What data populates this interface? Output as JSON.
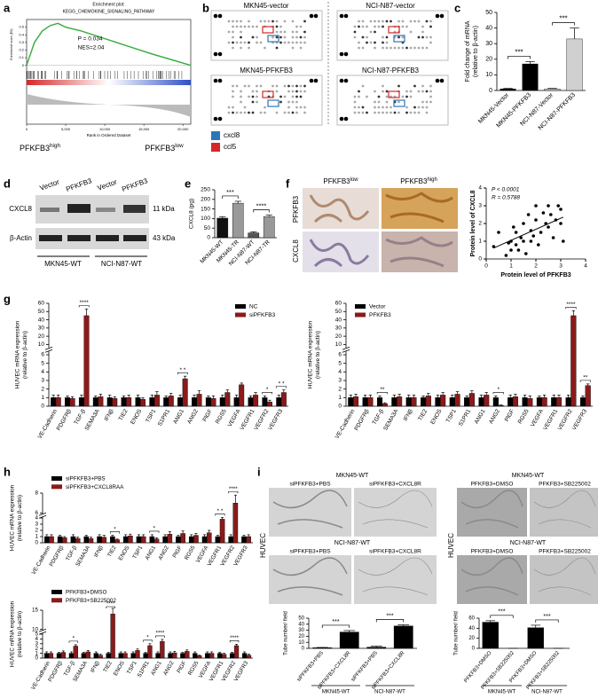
{
  "panel_labels": [
    "a",
    "b",
    "c",
    "d",
    "e",
    "f",
    "g",
    "h",
    "i"
  ],
  "arrays": {
    "titles": [
      "MKN45-vector",
      "NCI-N87-vector",
      "MKN45-PFKFB3",
      "NCI-N87-PFKFB3"
    ],
    "legend": [
      {
        "name": "cxcl8",
        "color": "#2e75b6"
      },
      {
        "name": "ccl5",
        "color": "#d62728"
      }
    ]
  },
  "western_blot": {
    "lanes": [
      "Vector",
      "PFKFB3",
      "Vector",
      "PFKFB3"
    ],
    "rows": [
      {
        "name": "CXCL8",
        "size": "11 kDa"
      },
      {
        "name": "β-Actin",
        "size": "43 kDa"
      }
    ],
    "groups": [
      "MKN45-WT",
      "NCI-N87-WT"
    ]
  },
  "ihc": {
    "columns": [
      {
        "text": "PFKFB3",
        "sup": "low"
      },
      {
        "text": "PFKFB3",
        "sup": "high"
      }
    ],
    "rows": [
      "PFKFB3",
      "CXCL8"
    ]
  },
  "tube_images": {
    "side_label": "HUVEC",
    "left": [
      {
        "title": "MKN45-WT",
        "images": [
          "siPFKFB3+PBS",
          "siPFKFB3+CXCL8R"
        ]
      },
      {
        "title": "NCI-N87-WT",
        "images": [
          "siPFKFB3+PBS",
          "siPFKFB3+CXCL8R"
        ]
      }
    ],
    "right": [
      {
        "title": "MKN45-WT",
        "images": [
          "PFKFB3+DMSO",
          "PFKFB3+SB225002"
        ]
      },
      {
        "title": "NCI-N87-WT",
        "images": [
          "PFKFB3+DMSO",
          "PFKFB3+SB225002"
        ]
      }
    ]
  },
  "chart_data": [
    {
      "type": "line",
      "title": [
        "Enrichment plot:",
        "KEGG_CHEMOKINE_SIGNALING_PATHWAY"
      ],
      "ylabel": "Enrichment score (ES)",
      "xlabel": "Rank in Ordered Dataset",
      "x": [
        0,
        1000,
        2000,
        3000,
        4000,
        5000,
        7000,
        10000,
        13000,
        16000,
        19000,
        21000
      ],
      "y": [
        0,
        0.3,
        0.45,
        0.52,
        0.55,
        0.5,
        0.45,
        0.35,
        0.25,
        0.15,
        0.06,
        0
      ],
      "color": "#3cb043",
      "xlim": [
        0,
        21000
      ],
      "ylim": [
        -0.05,
        0.6
      ],
      "yticks": [
        0,
        0.1,
        0.2,
        0.3,
        0.4,
        0.5
      ],
      "xticks": [
        0,
        {
          "value": 5000,
          "label": "5,000"
        },
        {
          "value": 10000,
          "label": "10,000"
        },
        {
          "value": 15000,
          "label": "15,000"
        },
        {
          "value": 20000,
          "label": "20,000"
        }
      ],
      "annotations": [
        "P = 0.034",
        "NES=2.04"
      ],
      "group_labels": [
        {
          "text": "PFKFB3",
          "sup": "high"
        },
        {
          "text": "PFKFB3",
          "sup": "low"
        }
      ]
    },
    {
      "type": "bar",
      "ylabel": [
        "Fold change of mRNA",
        "(relative to β-actin)"
      ],
      "categories": [
        "MKN45-Vector",
        "MKN45-PFKFB3",
        "NCI-N87-Vector",
        "NCI-N87-PFKFB3"
      ],
      "values": [
        1,
        17,
        1,
        33
      ],
      "errors": [
        0.3,
        1.5,
        0.3,
        7
      ],
      "colors": [
        "#000000",
        "#000000",
        "#d0d0d0",
        "#d0d0d0"
      ],
      "ylim": [
        0,
        50
      ],
      "yticks": [
        0,
        10,
        20,
        30,
        40,
        50
      ],
      "annotations": [
        {
          "label": "***"
        },
        {
          "label": "***"
        }
      ]
    },
    {
      "type": "bar",
      "ylabel": [
        "CXCL8 (pg)"
      ],
      "categories": [
        "MKN45-WT",
        "MKN45-TR",
        "NCI-N87-WT",
        "NCI-N87-TR"
      ],
      "values": [
        102,
        180,
        25,
        110
      ],
      "errors": [
        8,
        10,
        6,
        8
      ],
      "colors": [
        "#111111",
        "#999999",
        "#555555",
        "#999999"
      ],
      "ylim": [
        0,
        250
      ],
      "yticks": [
        0,
        50,
        100,
        150,
        200,
        250
      ],
      "annotations": [
        {
          "label": "***"
        },
        {
          "label": "****"
        }
      ]
    },
    {
      "type": "scatter",
      "xlabel": "Protein level of PFKFB3",
      "ylabel": "Protein level of CXCL8",
      "x": [
        0.3,
        0.5,
        0.8,
        0.9,
        1.0,
        1.0,
        1.1,
        1.2,
        1.2,
        1.3,
        1.4,
        1.5,
        1.5,
        1.6,
        1.7,
        1.8,
        1.8,
        1.9,
        2.0,
        2.0,
        2.1,
        2.2,
        2.3,
        2.4,
        2.5,
        2.5,
        2.6,
        2.7,
        2.8,
        2.9,
        3.0,
        3.0,
        3.1
      ],
      "y": [
        0.7,
        1.5,
        0.2,
        0.9,
        1.0,
        0.5,
        1.8,
        1.5,
        0.8,
        0.5,
        1.2,
        2.0,
        1.0,
        0.3,
        2.5,
        1.0,
        1.6,
        1.3,
        2.2,
        3.0,
        0.8,
        1.5,
        2.6,
        2.0,
        3.0,
        1.8,
        2.5,
        1.2,
        2.2,
        3.0,
        2.0,
        2.8,
        1.0
      ],
      "color": "#000000",
      "xlim": [
        0,
        4
      ],
      "ylim": [
        0,
        4
      ],
      "xticks": [
        0,
        1,
        2,
        3,
        4
      ],
      "yticks": [
        0,
        1,
        2,
        3,
        4
      ],
      "annotations": [
        "P < 0.0001",
        "R = 0.5788"
      ]
    },
    {
      "type": "bar",
      "ylabel": [
        "HUVEC mRNA expression",
        "(relative to β-actin)"
      ],
      "broken_axis": true,
      "legend": "upper right",
      "categories": [
        "VE-Cadherin",
        "PDGFRβ",
        "TGF-β",
        "SEMA3A",
        "IFNβ",
        "TIE2",
        "ENOS",
        "TSP1",
        "S1PR1",
        "ANG1",
        "ANG2",
        "PlGF",
        "RGS5",
        "VEGFA",
        "VEGFR1",
        "VEGFR2",
        "VEGFR3"
      ],
      "series": [
        {
          "name": "NC",
          "color": "#000000",
          "values": [
            1,
            1,
            1,
            1,
            1,
            1,
            1,
            1,
            1,
            1,
            1,
            1,
            1,
            1,
            1,
            1,
            1
          ],
          "errors": [
            0.3,
            0.2,
            0.3,
            0.2,
            0.3,
            0.2,
            0.3,
            0.3,
            0.2,
            0.3,
            0.3,
            0.2,
            0.3,
            0.3,
            0.2,
            0.2,
            0.3
          ]
        },
        {
          "name": "siPFKFB3",
          "color": "#8b1a1a",
          "values": [
            1.0,
            0.9,
            45,
            1.1,
            0.9,
            1.0,
            0.8,
            1.3,
            1.2,
            3.2,
            1.4,
            0.9,
            1.6,
            2.5,
            1.3,
            0.5,
            1.6
          ],
          "errors": [
            0.3,
            0.2,
            8,
            0.3,
            0.2,
            0.3,
            0.2,
            0.4,
            0.3,
            0.3,
            0.4,
            0.3,
            0.3,
            0.2,
            0.3,
            0.2,
            0.3
          ]
        }
      ],
      "ylim": [
        0,
        60
      ],
      "yticks": [
        0,
        1,
        2,
        3,
        4,
        5,
        6,
        10,
        20,
        30,
        40,
        50,
        60
      ],
      "annotations": [
        {
          "label": "****",
          "category": "TGF-β"
        },
        {
          "label": "* *",
          "category": "ANG1"
        },
        {
          "label": "*",
          "category": "VEGFR2"
        },
        {
          "label": "* *",
          "category": "VEGFR3"
        }
      ]
    },
    {
      "type": "bar",
      "ylabel": [
        "HUVEC mRNA expression",
        "(relative to β-actin)"
      ],
      "broken_axis": true,
      "legend": "upper left",
      "categories": [
        "VE-Cadherin",
        "PDGFRβ",
        "TGF-β",
        "SEMA3A",
        "IFNβ",
        "TIE2",
        "ENOS",
        "TSP1",
        "S1PR1",
        "ANG1",
        "ANG2",
        "PlGF",
        "RGS5",
        "VEGFA",
        "VEGFR1",
        "VEGFR2",
        "VEGFR3"
      ],
      "series": [
        {
          "name": "Vector",
          "color": "#000000",
          "values": [
            1,
            1,
            1,
            1,
            1,
            1,
            1,
            1,
            1,
            1,
            1,
            1,
            1,
            1,
            1,
            1,
            1
          ],
          "errors": [
            0.3,
            0.3,
            0.2,
            0.3,
            0.3,
            0.2,
            0.3,
            0.3,
            0.2,
            0.3,
            0.2,
            0.3,
            0.3,
            0.2,
            0.3,
            0.3,
            0.2
          ]
        },
        {
          "name": "PFKFB3",
          "color": "#8b1a1a",
          "values": [
            1.1,
            1.0,
            0.3,
            1.1,
            1.0,
            1.2,
            1.3,
            1.4,
            1.5,
            1.3,
            0.1,
            1.1,
            0.9,
            1.0,
            1.0,
            45,
            2.4
          ],
          "errors": [
            0.3,
            0.3,
            0.1,
            0.3,
            0.3,
            0.3,
            0.3,
            0.3,
            0.3,
            0.3,
            0.05,
            0.3,
            0.3,
            0.3,
            0.3,
            6,
            0.2
          ]
        }
      ],
      "ylim": [
        0,
        60
      ],
      "yticks": [
        0,
        1,
        2,
        3,
        4,
        5,
        6,
        10,
        20,
        30,
        40,
        50,
        60
      ],
      "annotations": [
        {
          "label": "**",
          "category": "TGF-β"
        },
        {
          "label": "*",
          "category": "ANG2"
        },
        {
          "label": "****",
          "category": "VEGFR2"
        },
        {
          "label": "**",
          "category": "VEGFR3"
        }
      ]
    },
    {
      "type": "bar",
      "ylabel": [
        "HUVEC mRNA expression",
        "(relative to β-actin)"
      ],
      "broken_axis": true,
      "legend": "upper left",
      "categories": [
        "VE-Cadherin",
        "PDGFRβ",
        "TGF-β",
        "SEMA3A",
        "IFNβ",
        "TIE2",
        "ENOS",
        "TSP1",
        "ANG1",
        "ANG2",
        "PlGF",
        "RGS5",
        "VEGFA",
        "VEGFR1",
        "VEGFR2",
        "VEGFR3"
      ],
      "series": [
        {
          "name": "siPFKFB3+PBS",
          "color": "#000000",
          "values": [
            1,
            1,
            1,
            1,
            1,
            1,
            1,
            1,
            1,
            1,
            1,
            1,
            1,
            1,
            1,
            1
          ],
          "errors": [
            0.3,
            0.2,
            0.3,
            0.2,
            0.3,
            0.2,
            0.3,
            0.3,
            0.3,
            0.3,
            0.2,
            0.3,
            0.3,
            0.2,
            0.3,
            0.2
          ]
        },
        {
          "name": "siPFKFB3+CXCL8RAA",
          "color": "#8b1a1a",
          "values": [
            1.0,
            0.8,
            0.7,
            0.7,
            0.9,
            0.5,
            1.1,
            1.0,
            0.6,
            1.4,
            1.5,
            1.2,
            1.6,
            3.8,
            7.0,
            1.0
          ],
          "errors": [
            0.3,
            0.2,
            0.2,
            0.2,
            0.3,
            0.1,
            0.3,
            0.3,
            0.2,
            0.4,
            0.4,
            0.3,
            0.4,
            0.4,
            0.8,
            0.3
          ]
        }
      ],
      "ylim": [
        0,
        8
      ],
      "yticks": [
        0,
        1,
        2,
        3,
        4,
        6,
        8
      ],
      "annotations": [
        {
          "label": "*",
          "category": "TIE2"
        },
        {
          "label": "*",
          "category": "ANG1"
        },
        {
          "label": "* *",
          "category": "VEGFR1"
        },
        {
          "label": "****",
          "category": "VEGFR2"
        }
      ]
    },
    {
      "type": "bar",
      "ylabel": [
        "HUVEC mRNA expression",
        "(relative to β-actin)"
      ],
      "broken_axis": true,
      "legend": "upper left",
      "categories": [
        "VE-Cadherin",
        "PDGFRβ",
        "TGF-β",
        "SEMA3A",
        "IFNβ",
        "TIE2",
        "ENOS",
        "TSP1",
        "S1PR1",
        "ANG1",
        "ANG2",
        "PlGF",
        "RGS5",
        "VEGFA",
        "VEGFR1",
        "VEGFR2",
        "VEGFR3"
      ],
      "series": [
        {
          "name": "PFKFB3+DMSO",
          "color": "#000000",
          "values": [
            1,
            1,
            1,
            1,
            1,
            1,
            1,
            1,
            1,
            1,
            1,
            1,
            1,
            1,
            1,
            1,
            1
          ],
          "errors": [
            0.3,
            0.2,
            0.3,
            0.2,
            0.3,
            0.2,
            0.3,
            0.3,
            0.2,
            0.3,
            0.3,
            0.2,
            0.3,
            0.3,
            0.2,
            0.2,
            0.3
          ]
        },
        {
          "name": "PFKFB3+SB225002",
          "color": "#8b1a1a",
          "values": [
            1.0,
            1.2,
            2.5,
            1.3,
            0.6,
            14,
            1.0,
            1.6,
            2.6,
            3.5,
            1.1,
            1.4,
            0.5,
            1.0,
            0.8,
            2.6,
            0.6
          ],
          "errors": [
            0.3,
            0.3,
            0.3,
            0.3,
            0.2,
            1.5,
            0.3,
            0.3,
            0.4,
            0.4,
            0.3,
            0.3,
            0.1,
            0.3,
            0.2,
            0.3,
            0.2
          ]
        }
      ],
      "ylim": [
        0,
        15
      ],
      "yticks": [
        0,
        1,
        2,
        3,
        4,
        5,
        10,
        15
      ],
      "annotations": [
        {
          "label": "*",
          "category": "TGF-β"
        },
        {
          "label": "****",
          "category": "TIE2"
        },
        {
          "label": "*",
          "category": "S1PR1"
        },
        {
          "label": "****",
          "category": "ANG1"
        },
        {
          "label": "****",
          "category": "VEGFR2"
        }
      ]
    },
    {
      "type": "bar",
      "ylabel": [
        "Tube number/ field"
      ],
      "categories": [
        "siPFKFB3+PBS",
        "siPFKFB3+CXCL8R",
        "siPFKFB3+PBS",
        "siPFKFB3+CXCL8R"
      ],
      "values": [
        1,
        27,
        2,
        37
      ],
      "errors": [
        0.5,
        2.5,
        1.5,
        2
      ],
      "colors": [
        "#000000",
        "#000000",
        "#000000",
        "#000000"
      ],
      "ylim": [
        0,
        50
      ],
      "yticks": [
        0,
        10,
        20,
        30,
        40,
        50
      ],
      "annotations": [
        {
          "label": "***"
        },
        {
          "label": "***"
        }
      ],
      "groups": [
        "MKN45-WT",
        "NCI-N87-WT"
      ]
    },
    {
      "type": "bar",
      "ylabel": [
        "Tube number/ field"
      ],
      "categories": [
        "PFKFB3+DMSO",
        "PFKFB3+SB225002",
        "PFKFB3+DMSO",
        "PFKFB3+SB225002"
      ],
      "values": [
        52,
        0,
        41,
        0
      ],
      "errors": [
        3,
        0,
        5,
        0
      ],
      "colors": [
        "#000000",
        "#000000",
        "#000000",
        "#000000"
      ],
      "ylim": [
        0,
        60
      ],
      "yticks": [
        0,
        20,
        40,
        60
      ],
      "annotations": [
        {
          "label": "***"
        },
        {
          "label": "***"
        }
      ],
      "groups": [
        "MKN45-WT",
        "NCI-N87-WT"
      ]
    }
  ]
}
